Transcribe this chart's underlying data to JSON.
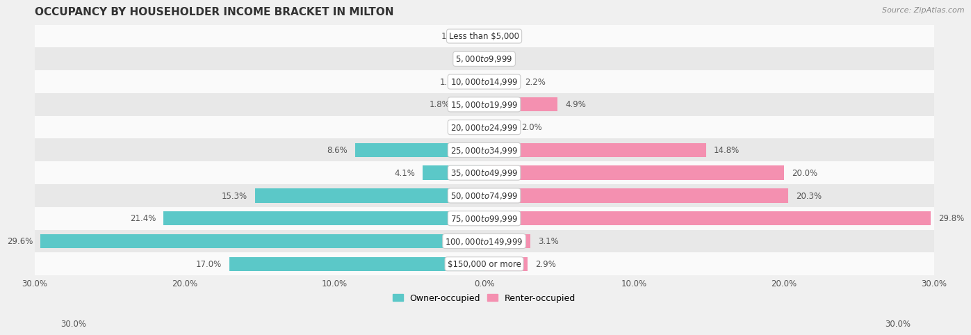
{
  "title": "OCCUPANCY BY HOUSEHOLDER INCOME BRACKET IN MILTON",
  "source": "Source: ZipAtlas.com",
  "categories": [
    "Less than $5,000",
    "$5,000 to $9,999",
    "$10,000 to $14,999",
    "$15,000 to $19,999",
    "$20,000 to $24,999",
    "$25,000 to $34,999",
    "$35,000 to $49,999",
    "$50,000 to $74,999",
    "$75,000 to $99,999",
    "$100,000 to $149,999",
    "$150,000 or more"
  ],
  "owner_values": [
    1.0,
    0.0,
    1.1,
    1.8,
    0.0,
    8.6,
    4.1,
    15.3,
    21.4,
    29.6,
    17.0
  ],
  "renter_values": [
    0.0,
    0.0,
    2.2,
    4.9,
    2.0,
    14.8,
    20.0,
    20.3,
    29.8,
    3.1,
    2.9
  ],
  "owner_color": "#5bc8c8",
  "renter_color": "#f490b0",
  "bar_height": 0.62,
  "background_color": "#f0f0f0",
  "row_bg_light": "#fafafa",
  "row_bg_dark": "#e8e8e8",
  "title_color": "#333333",
  "text_color": "#555555",
  "label_fontsize": 8.5,
  "title_fontsize": 11,
  "xlim": 30.0,
  "legend_owner": "Owner-occupied",
  "legend_renter": "Renter-occupied"
}
